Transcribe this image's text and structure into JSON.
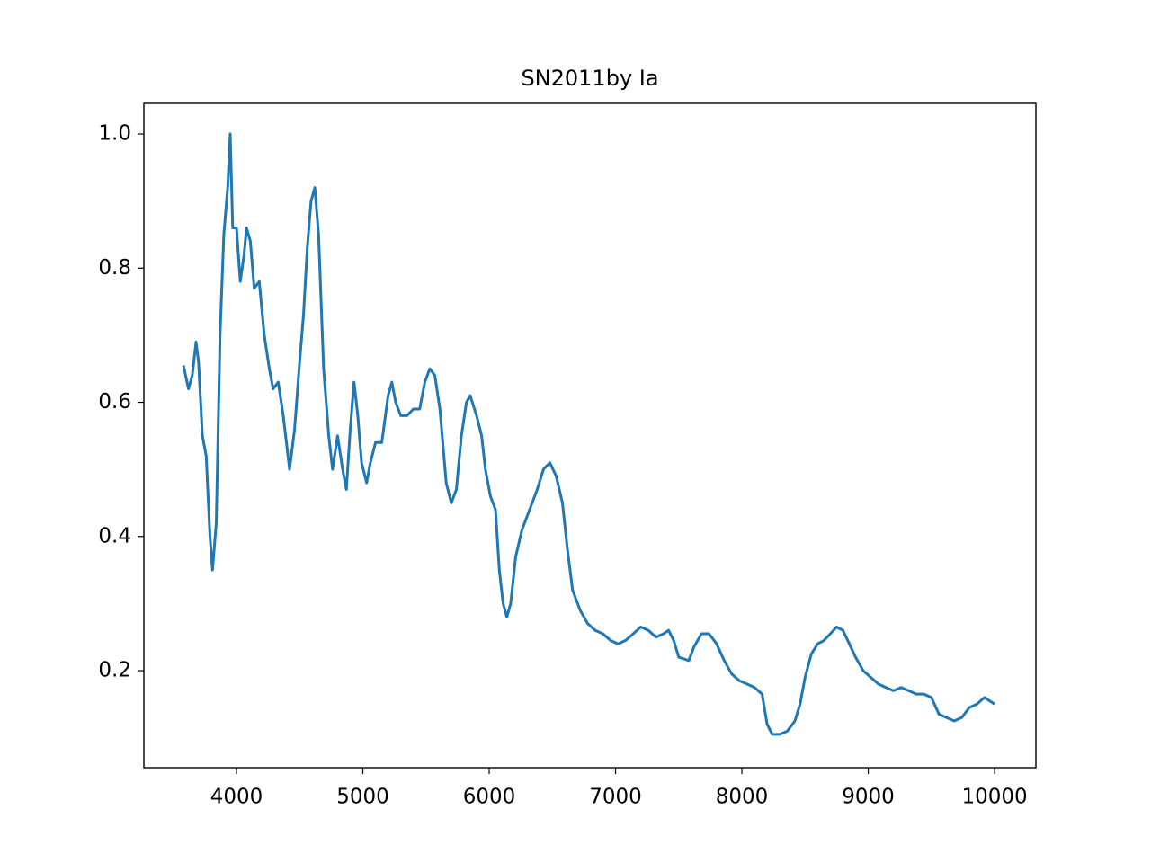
{
  "chart_data": {
    "type": "line",
    "title": "SN2011by Ia",
    "color": "#1f77b4",
    "x": [
      3580,
      3620,
      3650,
      3680,
      3700,
      3730,
      3760,
      3790,
      3810,
      3840,
      3870,
      3900,
      3930,
      3950,
      3970,
      4000,
      4030,
      4060,
      4080,
      4110,
      4140,
      4180,
      4220,
      4260,
      4290,
      4330,
      4370,
      4420,
      4460,
      4500,
      4530,
      4560,
      4590,
      4620,
      4650,
      4690,
      4730,
      4760,
      4800,
      4840,
      4870,
      4900,
      4930,
      4960,
      4990,
      5030,
      5060,
      5100,
      5150,
      5200,
      5230,
      5260,
      5300,
      5350,
      5400,
      5450,
      5490,
      5530,
      5570,
      5610,
      5660,
      5700,
      5740,
      5780,
      5820,
      5850,
      5900,
      5940,
      5970,
      6010,
      6050,
      6080,
      6110,
      6140,
      6170,
      6210,
      6260,
      6320,
      6380,
      6430,
      6480,
      6530,
      6580,
      6620,
      6660,
      6720,
      6780,
      6840,
      6900,
      6960,
      7020,
      7080,
      7140,
      7200,
      7260,
      7320,
      7380,
      7420,
      7460,
      7500,
      7580,
      7620,
      7680,
      7740,
      7800,
      7860,
      7920,
      7980,
      8040,
      8100,
      8160,
      8200,
      8240,
      8300,
      8360,
      8420,
      8460,
      8500,
      8550,
      8600,
      8650,
      8700,
      8750,
      8800,
      8850,
      8900,
      8960,
      9020,
      9080,
      9140,
      9200,
      9260,
      9320,
      9380,
      9440,
      9500,
      9560,
      9620,
      9680,
      9740,
      9800,
      9860,
      9920,
      9960,
      10000
    ],
    "values": [
      0.655,
      0.62,
      0.64,
      0.69,
      0.66,
      0.55,
      0.52,
      0.4,
      0.35,
      0.42,
      0.7,
      0.85,
      0.92,
      1.0,
      0.86,
      0.86,
      0.78,
      0.82,
      0.86,
      0.84,
      0.77,
      0.78,
      0.7,
      0.65,
      0.62,
      0.63,
      0.58,
      0.5,
      0.56,
      0.66,
      0.73,
      0.83,
      0.9,
      0.92,
      0.85,
      0.65,
      0.55,
      0.5,
      0.55,
      0.5,
      0.47,
      0.56,
      0.63,
      0.58,
      0.51,
      0.48,
      0.51,
      0.54,
      0.54,
      0.61,
      0.63,
      0.6,
      0.58,
      0.58,
      0.59,
      0.59,
      0.63,
      0.65,
      0.64,
      0.59,
      0.48,
      0.45,
      0.47,
      0.55,
      0.6,
      0.61,
      0.58,
      0.55,
      0.5,
      0.46,
      0.44,
      0.35,
      0.3,
      0.28,
      0.3,
      0.37,
      0.41,
      0.44,
      0.47,
      0.5,
      0.51,
      0.49,
      0.45,
      0.38,
      0.32,
      0.29,
      0.27,
      0.26,
      0.255,
      0.245,
      0.24,
      0.245,
      0.255,
      0.265,
      0.26,
      0.25,
      0.255,
      0.26,
      0.245,
      0.22,
      0.215,
      0.235,
      0.255,
      0.255,
      0.24,
      0.215,
      0.195,
      0.185,
      0.18,
      0.175,
      0.165,
      0.12,
      0.105,
      0.105,
      0.11,
      0.125,
      0.15,
      0.19,
      0.225,
      0.24,
      0.245,
      0.255,
      0.265,
      0.26,
      0.24,
      0.22,
      0.2,
      0.19,
      0.18,
      0.175,
      0.17,
      0.175,
      0.17,
      0.165,
      0.165,
      0.16,
      0.135,
      0.13,
      0.125,
      0.13,
      0.145,
      0.15,
      0.16,
      0.155,
      0.15
    ],
    "xlim": [
      3267,
      10327
    ],
    "ylim": [
      0.0553,
      1.0456
    ],
    "xticks": [
      4000,
      5000,
      6000,
      7000,
      8000,
      9000,
      10000
    ],
    "yticks": [
      0.2,
      0.4,
      0.6,
      0.8,
      {
        "value": 1,
        "label": "1.0"
      }
    ]
  }
}
